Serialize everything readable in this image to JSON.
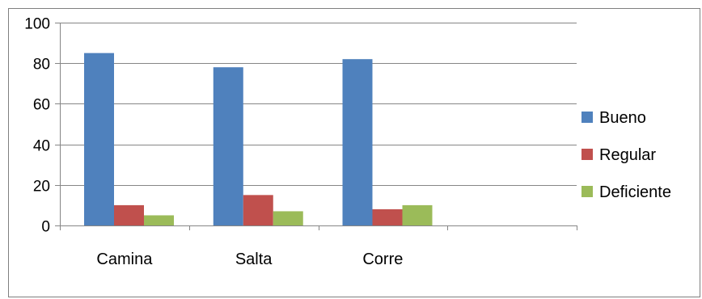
{
  "chart_data": {
    "type": "bar",
    "categories": [
      "Camina",
      "Salta",
      "Corre"
    ],
    "slot_count": 4,
    "series": [
      {
        "name": "Bueno",
        "values": [
          85,
          78,
          82
        ],
        "color": "#4F81BD"
      },
      {
        "name": "Regular",
        "values": [
          10,
          15,
          8
        ],
        "color": "#C0504D"
      },
      {
        "name": "Deficiente",
        "values": [
          5,
          7,
          10
        ],
        "color": "#9BBB59"
      }
    ],
    "ylim": [
      0,
      100
    ],
    "yticks": [
      0,
      20,
      40,
      60,
      80,
      100
    ],
    "grid": true,
    "legend": "right",
    "title": "",
    "xlabel": "",
    "ylabel": ""
  }
}
